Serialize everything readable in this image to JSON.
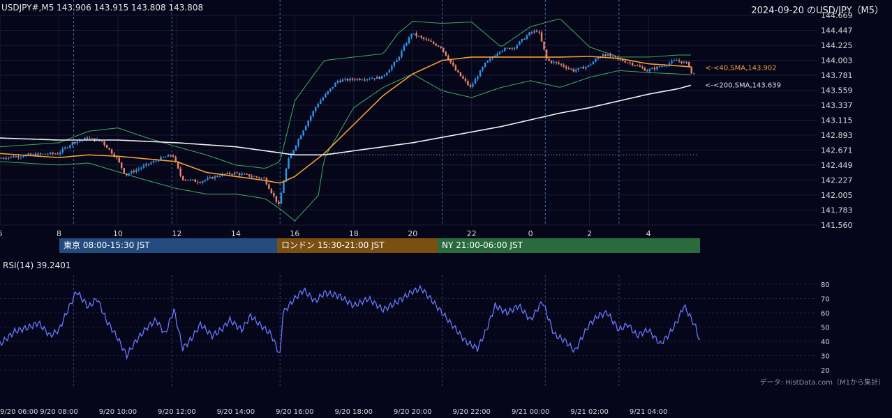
{
  "header": {
    "symbol_info": "USDJPY#,M5 143.906 143.915 143.808 143.808",
    "chart_title": "2024-09-20 のUSD/JPY（M5）"
  },
  "colors": {
    "background": "#05061a",
    "candle_up": "#2f93e8",
    "candle_down": "#e8836b",
    "sma40": "#f5a033",
    "sma200": "#f2f2f2",
    "bollinger": "#3fae5c",
    "rsi_line": "#6a78ff",
    "tokyo_session": "#234b7e",
    "london_session": "#7a4f12",
    "ny_session": "#2a6b3d"
  },
  "sessions": [
    {
      "label": "東京 08:00-15:30 JST"
    },
    {
      "label": "ロンドン 15:30-21:00 JST"
    },
    {
      "label": "NY 21:00-06:00 JST"
    }
  ],
  "rsi_panel": {
    "label": "RSI(14) 39.2401"
  },
  "source_note": "データ: HistData.com（M1から集計）",
  "chart_data": [
    {
      "type": "candlestick",
      "title": "USDJPY#,M5 143.906 143.915 143.808 143.808",
      "y_ticks": [
        "144.669",
        "144.447",
        "144.225",
        "144.003",
        "143.781",
        "143.559",
        "143.337",
        "143.115",
        "142.893",
        "142.671",
        "142.449",
        "142.227",
        "142.005",
        "141.783",
        "141.560"
      ],
      "ylim": [
        141.56,
        144.669
      ],
      "x_ticks": [
        "6",
        "8",
        "10",
        "12",
        "14",
        "16",
        "18",
        "20",
        "22",
        "0",
        "2",
        "4"
      ],
      "x_tick_hours": [
        6,
        8,
        10,
        12,
        14,
        16,
        18,
        20,
        22,
        24,
        26,
        28
      ],
      "xlim_hours": [
        6.0,
        29.75
      ],
      "dotted_reference_level": 142.6,
      "dashed_vlines_hours": [
        8.5,
        11.83,
        15.5,
        21,
        24.5,
        27
      ],
      "grid": true,
      "series": [
        {
          "name": "<-<40,SMA,143.902",
          "kind": "sma40",
          "last": 143.902,
          "points": [
            [
              6,
              142.62
            ],
            [
              8,
              142.56
            ],
            [
              9,
              142.6
            ],
            [
              10,
              142.58
            ],
            [
              11,
              142.54
            ],
            [
              12,
              142.5
            ],
            [
              13,
              142.34
            ],
            [
              14,
              142.28
            ],
            [
              15,
              142.22
            ],
            [
              15.5,
              142.18
            ],
            [
              16,
              142.28
            ],
            [
              17,
              142.62
            ],
            [
              18,
              143.05
            ],
            [
              19,
              143.48
            ],
            [
              20,
              143.8
            ],
            [
              21,
              144.0
            ],
            [
              22,
              144.05
            ],
            [
              23,
              144.05
            ],
            [
              24,
              144.05
            ],
            [
              25,
              144.05
            ],
            [
              26,
              144.06
            ],
            [
              27,
              144.03
            ],
            [
              28,
              143.95
            ],
            [
              29,
              143.92
            ],
            [
              29.5,
              143.902
            ]
          ]
        },
        {
          "name": "<-<200,SMA,143.639",
          "kind": "sma200",
          "last": 143.639,
          "points": [
            [
              6,
              142.85
            ],
            [
              8,
              142.82
            ],
            [
              10,
              142.82
            ],
            [
              12,
              142.78
            ],
            [
              14,
              142.72
            ],
            [
              15,
              142.66
            ],
            [
              16,
              142.6
            ],
            [
              17,
              142.6
            ],
            [
              18,
              142.66
            ],
            [
              19,
              142.72
            ],
            [
              20,
              142.78
            ],
            [
              21,
              142.86
            ],
            [
              22,
              142.94
            ],
            [
              23,
              143.02
            ],
            [
              24,
              143.12
            ],
            [
              25,
              143.22
            ],
            [
              26,
              143.3
            ],
            [
              27,
              143.4
            ],
            [
              28,
              143.5
            ],
            [
              29,
              143.58
            ],
            [
              29.5,
              143.639
            ]
          ]
        },
        {
          "name": "bollinger_upper",
          "kind": "bb",
          "points": [
            [
              6,
              142.72
            ],
            [
              8,
              142.78
            ],
            [
              9,
              142.95
            ],
            [
              10,
              143.0
            ],
            [
              11,
              142.85
            ],
            [
              12,
              142.72
            ],
            [
              13,
              142.6
            ],
            [
              14,
              142.45
            ],
            [
              15,
              142.4
            ],
            [
              15.5,
              142.5
            ],
            [
              16,
              143.4
            ],
            [
              17,
              144.0
            ],
            [
              18,
              144.05
            ],
            [
              19,
              144.1
            ],
            [
              19.5,
              144.4
            ],
            [
              20,
              144.58
            ],
            [
              21,
              144.55
            ],
            [
              22,
              144.57
            ],
            [
              23,
              144.2
            ],
            [
              24,
              144.5
            ],
            [
              25,
              144.62
            ],
            [
              26,
              144.2
            ],
            [
              27,
              144.05
            ],
            [
              28,
              144.05
            ],
            [
              29,
              144.08
            ],
            [
              29.5,
              144.08
            ]
          ]
        },
        {
          "name": "bollinger_lower",
          "kind": "bb",
          "points": [
            [
              6,
              142.5
            ],
            [
              8,
              142.45
            ],
            [
              9,
              142.48
            ],
            [
              10,
              142.35
            ],
            [
              11,
              142.22
            ],
            [
              12,
              142.1
            ],
            [
              13,
              142.02
            ],
            [
              14,
              142.02
            ],
            [
              15,
              141.95
            ],
            [
              15.5,
              141.8
            ],
            [
              16,
              141.62
            ],
            [
              16.8,
              142.0
            ],
            [
              17,
              142.55
            ],
            [
              18,
              143.3
            ],
            [
              19,
              143.6
            ],
            [
              20,
              143.8
            ],
            [
              21,
              143.55
            ],
            [
              22,
              143.45
            ],
            [
              23,
              143.6
            ],
            [
              24,
              143.7
            ],
            [
              25,
              143.6
            ],
            [
              26,
              143.75
            ],
            [
              27,
              143.85
            ],
            [
              28,
              143.82
            ],
            [
              29,
              143.8
            ],
            [
              29.5,
              143.79
            ]
          ]
        },
        {
          "name": "price_path",
          "kind": "candles",
          "points": [
            [
              6,
              142.55
            ],
            [
              7,
              142.6
            ],
            [
              8,
              142.62
            ],
            [
              8.5,
              142.78
            ],
            [
              9,
              142.85
            ],
            [
              9.5,
              142.8
            ],
            [
              10,
              142.55
            ],
            [
              10.3,
              142.3
            ],
            [
              11,
              142.45
            ],
            [
              11.5,
              142.55
            ],
            [
              11.9,
              142.6
            ],
            [
              12.2,
              142.25
            ],
            [
              12.8,
              142.2
            ],
            [
              13.5,
              142.3
            ],
            [
              14,
              142.33
            ],
            [
              15,
              142.25
            ],
            [
              15.5,
              141.85
            ],
            [
              15.8,
              142.5
            ],
            [
              16.3,
              142.95
            ],
            [
              16.8,
              143.35
            ],
            [
              17.5,
              143.7
            ],
            [
              18,
              143.72
            ],
            [
              19,
              143.75
            ],
            [
              19.5,
              144.0
            ],
            [
              20,
              144.4
            ],
            [
              20.5,
              144.3
            ],
            [
              21,
              144.2
            ],
            [
              21.5,
              143.85
            ],
            [
              22,
              143.6
            ],
            [
              22.5,
              143.95
            ],
            [
              23,
              144.15
            ],
            [
              23.5,
              144.2
            ],
            [
              24,
              144.4
            ],
            [
              24.3,
              144.45
            ],
            [
              24.6,
              144.0
            ],
            [
              25,
              143.95
            ],
            [
              25.5,
              143.85
            ],
            [
              26,
              143.92
            ],
            [
              26.5,
              144.1
            ],
            [
              27,
              144.02
            ],
            [
              27.5,
              143.95
            ],
            [
              28,
              143.85
            ],
            [
              28.5,
              143.92
            ],
            [
              29,
              144.0
            ],
            [
              29.4,
              143.95
            ],
            [
              29.5,
              143.808
            ]
          ]
        }
      ]
    },
    {
      "type": "line",
      "title": "RSI(14) 39.2401",
      "y_ticks": [
        "80",
        "70",
        "60",
        "50",
        "40",
        "30",
        "20"
      ],
      "ylim": [
        20,
        80
      ],
      "x_ticks": [
        "9/20 06:00",
        "9/20 08:00",
        "9/20 10:00",
        "9/20 12:00",
        "9/20 14:00",
        "9/20 16:00",
        "9/20 18:00",
        "9/20 20:00",
        "9/20 22:00",
        "9/21 00:00",
        "9/21 02:00",
        "9/21 04:00"
      ],
      "last": 39.2401,
      "points": [
        [
          6,
          38
        ],
        [
          6.5,
          47
        ],
        [
          7,
          50
        ],
        [
          7.3,
          53
        ],
        [
          7.7,
          44
        ],
        [
          8,
          48
        ],
        [
          8.3,
          62
        ],
        [
          8.6,
          75
        ],
        [
          9,
          64
        ],
        [
          9.3,
          70
        ],
        [
          9.6,
          55
        ],
        [
          10,
          42
        ],
        [
          10.3,
          30
        ],
        [
          10.6,
          40
        ],
        [
          11,
          50
        ],
        [
          11.3,
          55
        ],
        [
          11.6,
          45
        ],
        [
          11.9,
          62
        ],
        [
          12.2,
          35
        ],
        [
          12.5,
          42
        ],
        [
          12.8,
          52
        ],
        [
          13.2,
          44
        ],
        [
          13.5,
          48
        ],
        [
          13.8,
          55
        ],
        [
          14.2,
          48
        ],
        [
          14.5,
          58
        ],
        [
          14.8,
          52
        ],
        [
          15.2,
          45
        ],
        [
          15.5,
          30
        ],
        [
          15.6,
          60
        ],
        [
          16,
          70
        ],
        [
          16.3,
          76
        ],
        [
          16.7,
          68
        ],
        [
          17,
          74
        ],
        [
          17.5,
          72
        ],
        [
          18,
          65
        ],
        [
          18.5,
          70
        ],
        [
          19,
          62
        ],
        [
          19.5,
          68
        ],
        [
          20,
          75
        ],
        [
          20.3,
          77
        ],
        [
          20.6,
          70
        ],
        [
          21,
          60
        ],
        [
          21.4,
          50
        ],
        [
          21.8,
          40
        ],
        [
          22.2,
          35
        ],
        [
          22.5,
          48
        ],
        [
          22.8,
          65
        ],
        [
          23.2,
          60
        ],
        [
          23.6,
          65
        ],
        [
          24,
          55
        ],
        [
          24.4,
          68
        ],
        [
          24.8,
          45
        ],
        [
          25.2,
          40
        ],
        [
          25.5,
          33
        ],
        [
          25.8,
          45
        ],
        [
          26,
          52
        ],
        [
          26.3,
          58
        ],
        [
          26.6,
          60
        ],
        [
          27,
          48
        ],
        [
          27.3,
          52
        ],
        [
          27.6,
          44
        ],
        [
          28,
          48
        ],
        [
          28.4,
          38
        ],
        [
          28.7,
          45
        ],
        [
          29,
          55
        ],
        [
          29.2,
          65
        ],
        [
          29.4,
          58
        ],
        [
          29.6,
          50
        ],
        [
          29.75,
          39.24
        ]
      ]
    }
  ]
}
